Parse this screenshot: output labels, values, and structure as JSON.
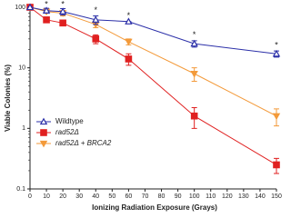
{
  "chart_data": {
    "type": "line",
    "xlabel": "Ionizing Radiation Exposure (Grays)",
    "ylabel": "Viable Colonies (%)",
    "x": [
      0,
      10,
      20,
      40,
      60,
      100,
      150
    ],
    "series": [
      {
        "name": "Wildtype",
        "color": "#2b2fa8",
        "marker": "triangle-up-open",
        "values": [
          100,
          88,
          85,
          62,
          58,
          25,
          17
        ],
        "errors": [
          0,
          8,
          10,
          10,
          0,
          3,
          2
        ]
      },
      {
        "name": "rad52Δ",
        "color": "#e02020",
        "marker": "square",
        "values": [
          100,
          62,
          55,
          30,
          14,
          1.6,
          0.25
        ],
        "errors": [
          0,
          0,
          0,
          5,
          3,
          0.6,
          0.07
        ]
      },
      {
        "name": "rad52Δ + BRCA2",
        "color": "#f39a3a",
        "marker": "triangle-down",
        "values": [
          100,
          85,
          80,
          52,
          27,
          8,
          1.6
        ],
        "errors": [
          0,
          5,
          8,
          6,
          3,
          2,
          0.5
        ]
      }
    ],
    "annotations": [
      {
        "text": "*",
        "x": 10
      },
      {
        "text": "*",
        "x": 20
      },
      {
        "text": "*",
        "x": 40
      },
      {
        "text": "*",
        "x": 60
      },
      {
        "text": "*",
        "x": 100
      },
      {
        "text": "*",
        "x": 150
      }
    ],
    "xlim": [
      0,
      150
    ],
    "xticks": [
      0,
      10,
      20,
      30,
      40,
      50,
      60,
      70,
      80,
      90,
      100,
      110,
      120,
      130,
      140,
      150
    ],
    "ylim": [
      0.1,
      100
    ],
    "yticks": [
      0.1,
      1,
      10,
      100
    ],
    "ylog": true,
    "legend": "lower-left"
  }
}
